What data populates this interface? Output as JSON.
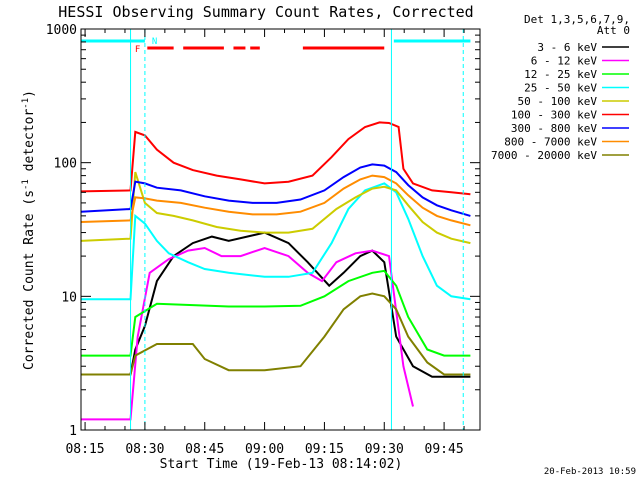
{
  "chart_data": {
    "type": "line",
    "title": "HESSI Observing Summary Count Rates, Corrected",
    "xlabel": "Start Time (19-Feb-13 08:14:02)",
    "ylabel_main": "Corrected Count Rate (s",
    "ylabel_sup1": "-1",
    "ylabel_mid": " detector",
    "ylabel_sup2": "-1",
    "ylabel_end": ")",
    "footer_timestamp": "20-Feb-2013 10:59",
    "yscale": "log",
    "xlim": [
      8.233,
      9.9
    ],
    "ylim": [
      1,
      1000
    ],
    "x_ticks": [
      {
        "value": 8.25,
        "label": "08:15"
      },
      {
        "value": 8.5,
        "label": "08:30"
      },
      {
        "value": 8.75,
        "label": "08:45"
      },
      {
        "value": 9.0,
        "label": "09:00"
      },
      {
        "value": 9.25,
        "label": "09:15"
      },
      {
        "value": 9.5,
        "label": "09:30"
      },
      {
        "value": 9.75,
        "label": "09:45"
      }
    ],
    "y_ticks": [
      {
        "value": 1,
        "label": "1"
      },
      {
        "value": 10,
        "label": "10"
      },
      {
        "value": 100,
        "label": "100"
      },
      {
        "value": 1000,
        "label": "1000"
      }
    ],
    "legend_header": [
      "Det 1,3,5,6,7,9,",
      "Att 0"
    ],
    "legend_position": "right",
    "series": [
      {
        "name": "3 - 6 keV",
        "color": "#000000",
        "points": [
          [
            8.233,
            2.6
          ],
          [
            8.44,
            2.6
          ],
          [
            8.46,
            4
          ],
          [
            8.5,
            6
          ],
          [
            8.55,
            13
          ],
          [
            8.62,
            20
          ],
          [
            8.7,
            25
          ],
          [
            8.78,
            28
          ],
          [
            8.85,
            26
          ],
          [
            9.0,
            30
          ],
          [
            9.1,
            25
          ],
          [
            9.18,
            18
          ],
          [
            9.27,
            12
          ],
          [
            9.33,
            15
          ],
          [
            9.4,
            20
          ],
          [
            9.45,
            22
          ],
          [
            9.5,
            18
          ],
          [
            9.55,
            5
          ],
          [
            9.62,
            3
          ],
          [
            9.7,
            2.5
          ],
          [
            9.86,
            2.5
          ]
        ]
      },
      {
        "name": "6 - 12 keV",
        "color": "#ff00ff",
        "points": [
          [
            8.233,
            1.2
          ],
          [
            8.44,
            1.2
          ],
          [
            8.47,
            5
          ],
          [
            8.52,
            15
          ],
          [
            8.6,
            19
          ],
          [
            8.68,
            22
          ],
          [
            8.75,
            23
          ],
          [
            8.82,
            20
          ],
          [
            8.9,
            20
          ],
          [
            9.0,
            23
          ],
          [
            9.1,
            20
          ],
          [
            9.18,
            15
          ],
          [
            9.24,
            13
          ],
          [
            9.3,
            18
          ],
          [
            9.38,
            21
          ],
          [
            9.45,
            22
          ],
          [
            9.52,
            20
          ],
          [
            9.58,
            3
          ],
          [
            9.62,
            1.5
          ]
        ]
      },
      {
        "name": "12 - 25 keV",
        "color": "#00ff00",
        "points": [
          [
            8.233,
            3.6
          ],
          [
            8.44,
            3.6
          ],
          [
            8.46,
            7
          ],
          [
            8.55,
            8.8
          ],
          [
            8.7,
            8.6
          ],
          [
            8.85,
            8.4
          ],
          [
            9.0,
            8.4
          ],
          [
            9.15,
            8.5
          ],
          [
            9.25,
            10
          ],
          [
            9.35,
            13
          ],
          [
            9.45,
            15
          ],
          [
            9.5,
            15.5
          ],
          [
            9.55,
            12
          ],
          [
            9.6,
            7
          ],
          [
            9.68,
            4
          ],
          [
            9.75,
            3.6
          ],
          [
            9.86,
            3.6
          ]
        ]
      },
      {
        "name": "25 - 50 keV",
        "color": "#00ffff",
        "points": [
          [
            8.233,
            9.5
          ],
          [
            8.44,
            9.5
          ],
          [
            8.46,
            40
          ],
          [
            8.5,
            35
          ],
          [
            8.55,
            26
          ],
          [
            8.6,
            21
          ],
          [
            8.68,
            18
          ],
          [
            8.75,
            16
          ],
          [
            8.85,
            15
          ],
          [
            9.0,
            14
          ],
          [
            9.1,
            14
          ],
          [
            9.2,
            15
          ],
          [
            9.28,
            25
          ],
          [
            9.35,
            45
          ],
          [
            9.42,
            62
          ],
          [
            9.5,
            70
          ],
          [
            9.55,
            60
          ],
          [
            9.6,
            38
          ],
          [
            9.66,
            20
          ],
          [
            9.72,
            12
          ],
          [
            9.78,
            10
          ],
          [
            9.86,
            9.5
          ]
        ]
      },
      {
        "name": "50 - 100 keV",
        "color": "#cccc00",
        "points": [
          [
            8.233,
            26
          ],
          [
            8.44,
            27
          ],
          [
            8.46,
            85
          ],
          [
            8.5,
            50
          ],
          [
            8.55,
            42
          ],
          [
            8.62,
            40
          ],
          [
            8.7,
            37
          ],
          [
            8.8,
            33
          ],
          [
            8.9,
            31
          ],
          [
            9.0,
            30
          ],
          [
            9.1,
            30
          ],
          [
            9.2,
            32
          ],
          [
            9.3,
            45
          ],
          [
            9.38,
            55
          ],
          [
            9.45,
            64
          ],
          [
            9.5,
            66
          ],
          [
            9.55,
            62
          ],
          [
            9.6,
            48
          ],
          [
            9.66,
            36
          ],
          [
            9.72,
            30
          ],
          [
            9.78,
            27
          ],
          [
            9.86,
            25
          ]
        ]
      },
      {
        "name": "100 - 300 keV",
        "color": "#ff0000",
        "points": [
          [
            8.233,
            61
          ],
          [
            8.44,
            62
          ],
          [
            8.46,
            170
          ],
          [
            8.5,
            160
          ],
          [
            8.55,
            125
          ],
          [
            8.62,
            100
          ],
          [
            8.7,
            88
          ],
          [
            8.8,
            80
          ],
          [
            8.9,
            75
          ],
          [
            9.0,
            70
          ],
          [
            9.1,
            72
          ],
          [
            9.2,
            80
          ],
          [
            9.28,
            110
          ],
          [
            9.35,
            150
          ],
          [
            9.42,
            185
          ],
          [
            9.48,
            200
          ],
          [
            9.52,
            198
          ],
          [
            9.56,
            185
          ],
          [
            9.58,
            90
          ],
          [
            9.62,
            70
          ],
          [
            9.7,
            62
          ],
          [
            9.78,
            60
          ],
          [
            9.86,
            58
          ]
        ]
      },
      {
        "name": "300 - 800 keV",
        "color": "#0000ff",
        "points": [
          [
            8.233,
            43
          ],
          [
            8.44,
            45
          ],
          [
            8.46,
            72
          ],
          [
            8.5,
            70
          ],
          [
            8.55,
            65
          ],
          [
            8.65,
            62
          ],
          [
            8.75,
            56
          ],
          [
            8.85,
            52
          ],
          [
            8.95,
            50
          ],
          [
            9.05,
            50
          ],
          [
            9.15,
            53
          ],
          [
            9.25,
            62
          ],
          [
            9.33,
            78
          ],
          [
            9.4,
            92
          ],
          [
            9.45,
            97
          ],
          [
            9.5,
            95
          ],
          [
            9.55,
            85
          ],
          [
            9.6,
            68
          ],
          [
            9.66,
            55
          ],
          [
            9.72,
            48
          ],
          [
            9.78,
            44
          ],
          [
            9.86,
            40
          ]
        ]
      },
      {
        "name": "800 - 7000 keV",
        "color": "#ff8c00",
        "points": [
          [
            8.233,
            36
          ],
          [
            8.44,
            37
          ],
          [
            8.46,
            55
          ],
          [
            8.5,
            54
          ],
          [
            8.55,
            52
          ],
          [
            8.65,
            50
          ],
          [
            8.75,
            46
          ],
          [
            8.85,
            43
          ],
          [
            8.95,
            41
          ],
          [
            9.05,
            41
          ],
          [
            9.15,
            43
          ],
          [
            9.25,
            50
          ],
          [
            9.33,
            64
          ],
          [
            9.4,
            75
          ],
          [
            9.45,
            80
          ],
          [
            9.5,
            78
          ],
          [
            9.55,
            70
          ],
          [
            9.6,
            57
          ],
          [
            9.66,
            46
          ],
          [
            9.72,
            40
          ],
          [
            9.78,
            37
          ],
          [
            9.86,
            34
          ]
        ]
      },
      {
        "name": "7000 - 20000 keV",
        "color": "#808000",
        "points": [
          [
            8.233,
            2.6
          ],
          [
            8.44,
            2.6
          ],
          [
            8.46,
            3.6
          ],
          [
            8.55,
            4.4
          ],
          [
            8.7,
            4.4
          ],
          [
            8.75,
            3.4
          ],
          [
            8.85,
            2.8
          ],
          [
            9.0,
            2.8
          ],
          [
            9.15,
            3.0
          ],
          [
            9.25,
            5
          ],
          [
            9.33,
            8
          ],
          [
            9.4,
            10
          ],
          [
            9.45,
            10.5
          ],
          [
            9.5,
            10
          ],
          [
            9.55,
            8
          ],
          [
            9.6,
            5
          ],
          [
            9.68,
            3.2
          ],
          [
            9.75,
            2.6
          ],
          [
            9.86,
            2.6
          ]
        ]
      }
    ],
    "observing_flags": [
      {
        "label": "N",
        "color": "#00ffff",
        "segments": [
          [
            8.233,
            8.5
          ],
          [
            9.54,
            9.86
          ]
        ]
      },
      {
        "label": "F",
        "color": "#ff0000",
        "segments": [
          [
            8.51,
            8.62
          ],
          [
            8.66,
            8.83
          ],
          [
            8.87,
            8.92
          ],
          [
            8.94,
            8.98
          ],
          [
            9.16,
            9.5
          ]
        ]
      }
    ],
    "vertical_markers": [
      {
        "x": 8.44,
        "color": "#00ffff",
        "style": "solid"
      },
      {
        "x": 8.5,
        "color": "#00ffff",
        "style": "dashed"
      },
      {
        "x": 9.53,
        "color": "#00ffff",
        "style": "solid"
      },
      {
        "x": 9.83,
        "color": "#00ffff",
        "style": "dashed"
      }
    ]
  }
}
